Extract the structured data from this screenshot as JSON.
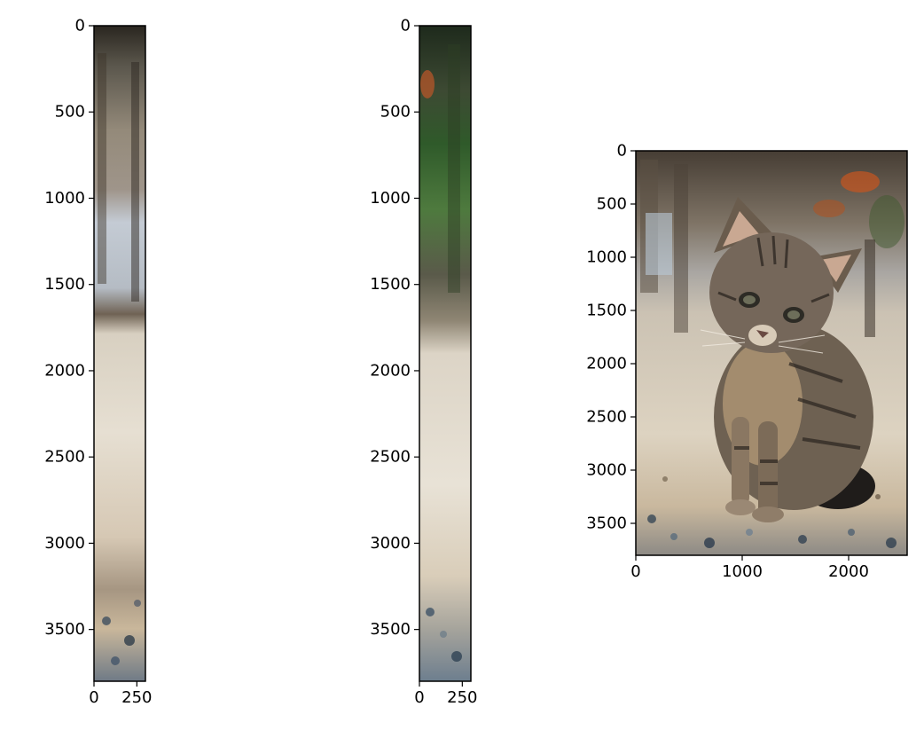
{
  "chart_data": [
    {
      "type": "image",
      "title": "",
      "xlabel": "",
      "ylabel": "",
      "xlim": [
        0,
        300
      ],
      "ylim": [
        3800,
        0
      ],
      "xticks": [
        0,
        250
      ],
      "yticks": [
        0,
        500,
        1000,
        1500,
        2000,
        2500,
        3000,
        3500
      ],
      "image_content": "narrow vertical strip cropped from the left edge of the kitten photo"
    },
    {
      "type": "image",
      "title": "",
      "xlabel": "",
      "ylabel": "",
      "xlim": [
        0,
        300
      ],
      "ylim": [
        3800,
        0
      ],
      "xticks": [
        0,
        250
      ],
      "yticks": [
        0,
        500,
        1000,
        1500,
        2000,
        2500,
        3000,
        3500
      ],
      "image_content": "narrow vertical strip cropped from the right edge of the kitten photo"
    },
    {
      "type": "image",
      "title": "",
      "xlabel": "",
      "ylabel": "",
      "xlim": [
        0,
        2550
      ],
      "ylim": [
        3800,
        0
      ],
      "xticks": [
        0,
        1000,
        2000
      ],
      "yticks": [
        0,
        500,
        1000,
        1500,
        2000,
        2500,
        3000,
        3500
      ],
      "image_content": "tabby kitten sitting on a terrazzo floor"
    }
  ]
}
